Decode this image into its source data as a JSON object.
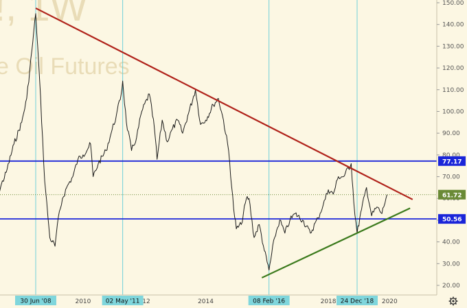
{
  "watermark": {
    "line1": "!, 1W",
    "line2": "e Oil Futures"
  },
  "chart_data": {
    "type": "line",
    "y_axis": {
      "min": 15,
      "max": 152,
      "ticks": [
        "20.00",
        "30.00",
        "40.00",
        "50.00",
        "60.00",
        "70.00",
        "80.00",
        "90.00",
        "100.00",
        "110.00",
        "120.00",
        "130.00",
        "140.00",
        "150.00"
      ]
    },
    "x_axis": {
      "ticks": [
        "2",
        "2010",
        "012",
        "2014",
        "2018",
        "2020"
      ],
      "date_flags": [
        "30 Jun '08",
        "02 May '11",
        "08 Feb '16",
        "24 Dec '18"
      ]
    },
    "series": [
      {
        "color": "#1a1a1a",
        "points": [
          [
            "2007-01",
            60
          ],
          [
            "2007-04",
            63
          ],
          [
            "2007-07",
            72
          ],
          [
            "2007-10",
            85
          ],
          [
            "2008-01",
            95
          ],
          [
            "2008-03",
            106
          ],
          [
            "2008-05",
            128
          ],
          [
            "2008-06-30",
            145
          ],
          [
            "2008-08",
            115
          ],
          [
            "2008-10",
            68
          ],
          [
            "2008-12",
            42
          ],
          [
            "2009-02",
            38
          ],
          [
            "2009-03",
            48
          ],
          [
            "2009-05",
            60
          ],
          [
            "2009-07",
            66
          ],
          [
            "2009-09",
            70
          ],
          [
            "2009-11",
            78
          ],
          [
            "2010-01",
            80
          ],
          [
            "2010-04",
            85
          ],
          [
            "2010-05",
            70
          ],
          [
            "2010-07",
            76
          ],
          [
            "2010-10",
            82
          ],
          [
            "2010-12",
            90
          ],
          [
            "2011-02",
            98
          ],
          [
            "2011-04-15",
            108
          ],
          [
            "2011-05-02",
            114
          ],
          [
            "2011-06",
            95
          ],
          [
            "2011-08",
            82
          ],
          [
            "2011-10",
            88
          ],
          [
            "2011-12",
            100
          ],
          [
            "2012-03",
            108
          ],
          [
            "2012-05",
            92
          ],
          [
            "2012-06",
            78
          ],
          [
            "2012-08",
            96
          ],
          [
            "2012-10",
            86
          ],
          [
            "2012-12",
            92
          ],
          [
            "2013-02",
            96
          ],
          [
            "2013-04",
            90
          ],
          [
            "2013-06",
            98
          ],
          [
            "2013-09",
            110
          ],
          [
            "2013-11",
            94
          ],
          [
            "2014-01",
            96
          ],
          [
            "2014-04",
            103
          ],
          [
            "2014-06",
            106
          ],
          [
            "2014-08",
            96
          ],
          [
            "2014-10",
            82
          ],
          [
            "2014-12",
            55
          ],
          [
            "2015-01",
            46
          ],
          [
            "2015-03",
            48
          ],
          [
            "2015-05",
            60
          ],
          [
            "2015-06",
            60
          ],
          [
            "2015-08",
            42
          ],
          [
            "2015-10",
            48
          ],
          [
            "2015-12",
            36
          ],
          [
            "2016-02-08",
            27
          ],
          [
            "2016-04",
            42
          ],
          [
            "2016-06",
            50
          ],
          [
            "2016-08",
            44
          ],
          [
            "2016-10",
            50
          ],
          [
            "2016-12",
            53
          ],
          [
            "2017-03",
            50
          ],
          [
            "2017-06",
            44
          ],
          [
            "2017-09",
            51
          ],
          [
            "2017-11",
            57
          ],
          [
            "2018-01",
            64
          ],
          [
            "2018-03",
            62
          ],
          [
            "2018-05",
            70
          ],
          [
            "2018-07",
            70
          ],
          [
            "2018-10",
            76
          ],
          [
            "2018-11",
            58
          ],
          [
            "2018-12-24",
            44
          ],
          [
            "2019-02",
            55
          ],
          [
            "2019-04",
            65
          ],
          [
            "2019-06",
            52
          ],
          [
            "2019-08",
            56
          ],
          [
            "2019-10",
            53
          ],
          [
            "2019-12",
            61.72
          ]
        ]
      }
    ],
    "trendlines": [
      {
        "name": "resistance",
        "color": "#b0221a",
        "from": [
          "2008-06-30",
          147.5
        ],
        "to": [
          "2020-10",
          59.5
        ]
      },
      {
        "name": "support",
        "color": "#3b7a1c",
        "from": [
          "2015-11",
          23.5
        ],
        "to": [
          "2020-09",
          55.5
        ]
      }
    ],
    "horizontal_levels": [
      {
        "value": 77.17,
        "label": "77.17",
        "color": "#1a25d9"
      },
      {
        "value": 50.56,
        "label": "50.56",
        "color": "#1a25d9"
      }
    ],
    "last_price": {
      "value": 61.72,
      "label": "61.72",
      "color": "#6a8a36"
    },
    "date_markers": [
      {
        "date": "2008-06-30",
        "label": "30 Jun '08"
      },
      {
        "date": "2011-05-02",
        "label": "02 May '11"
      },
      {
        "date": "2016-02-08",
        "label": "08 Feb '16"
      },
      {
        "date": "2018-12-24",
        "label": "24 Dec '18"
      }
    ],
    "grid": false
  },
  "icons": {
    "settings": "gear-icon"
  }
}
